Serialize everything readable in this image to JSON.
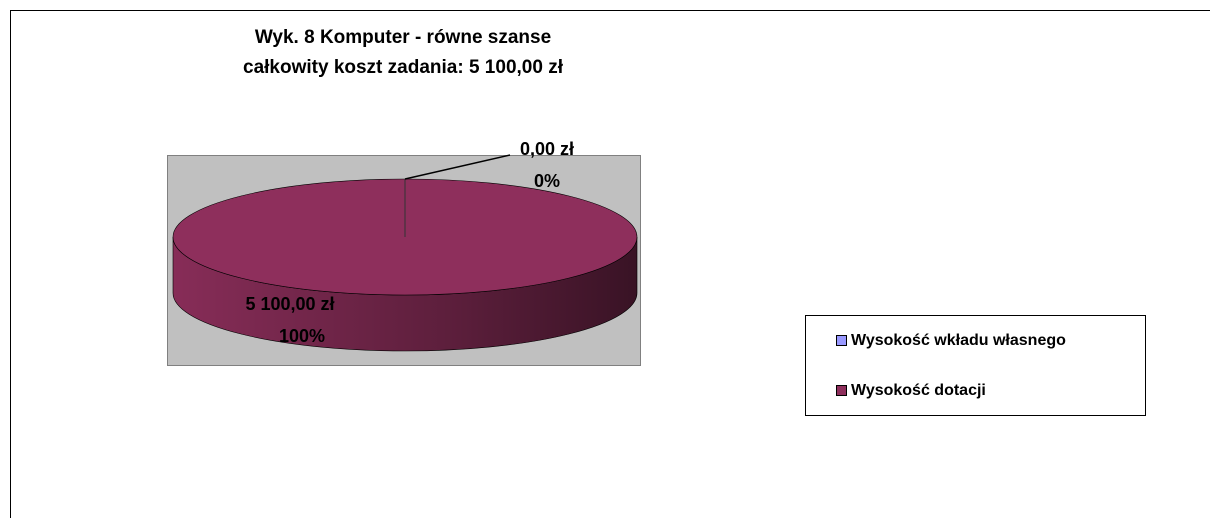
{
  "chart_data": {
    "type": "pie3d",
    "title": "Wyk. 8 Komputer - równe szanse",
    "subtitle": "całkowity koszt zadania: 5 100,00 zł",
    "categories": [
      "Wysokość wkładu własnego",
      "Wysokość dotacji"
    ],
    "values": [
      0,
      5100
    ],
    "value_labels": [
      "0,00 zł",
      "5 100,00 zł"
    ],
    "percent_labels": [
      "0%",
      "100%"
    ],
    "colors": [
      "#9999ff",
      "#8e2f5c"
    ],
    "legend": "right"
  }
}
